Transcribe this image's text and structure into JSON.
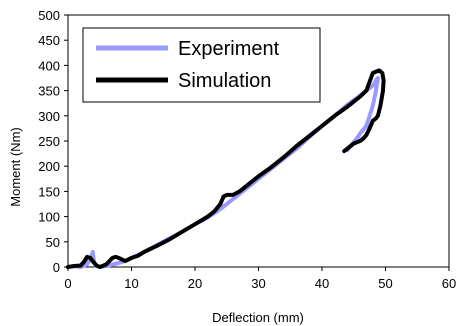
{
  "chart_data": {
    "type": "line",
    "title": "",
    "xlabel": "Deflection (mm)",
    "ylabel": "Moment (Nm)",
    "xlim": [
      0,
      60
    ],
    "ylim": [
      0,
      500
    ],
    "xticks": [
      0,
      10,
      20,
      30,
      40,
      50,
      60
    ],
    "yticks": [
      0,
      50,
      100,
      150,
      200,
      250,
      300,
      350,
      400,
      450,
      500
    ],
    "grid": false,
    "legend_position": "top-left",
    "series": [
      {
        "name": "Experiment",
        "color": "#9999ff",
        "x": [
          0,
          1,
          2,
          3,
          3.6,
          3.9,
          4.1,
          4.4,
          5.0,
          6.0,
          7,
          8,
          9,
          10,
          12,
          15,
          18,
          20,
          22,
          24,
          26,
          28,
          30,
          32,
          34,
          36,
          38,
          40,
          42,
          44,
          46,
          47,
          48,
          48.5,
          48.8,
          48.5,
          48,
          47.5,
          47,
          46,
          45.5,
          45,
          44.5,
          44
        ],
        "y": [
          0,
          2,
          0,
          5,
          20,
          30,
          10,
          2,
          0,
          2,
          5,
          8,
          12,
          18,
          30,
          50,
          70,
          85,
          98,
          115,
          135,
          155,
          175,
          195,
          215,
          235,
          258,
          280,
          300,
          322,
          340,
          350,
          360,
          370,
          375,
          350,
          320,
          300,
          280,
          265,
          255,
          248,
          240,
          232
        ]
      },
      {
        "name": "Simulation",
        "color": "#000000",
        "x": [
          0,
          1,
          2,
          2.5,
          3,
          3.5,
          4,
          4.5,
          5,
          6,
          7,
          7.5,
          8,
          9,
          10,
          11,
          12,
          14,
          16,
          18,
          20,
          22,
          23,
          24,
          24.5,
          25,
          26,
          27,
          28,
          30,
          32,
          34,
          36,
          38,
          40,
          42,
          44,
          46,
          47,
          48,
          49,
          49.5,
          49.7,
          49.6,
          49.2,
          48.8,
          48.5,
          48,
          47.5,
          47,
          46.5,
          46,
          45,
          44,
          43.5
        ],
        "y": [
          0,
          2,
          3,
          10,
          20,
          18,
          10,
          3,
          0,
          5,
          18,
          20,
          18,
          12,
          18,
          22,
          30,
          42,
          55,
          70,
          85,
          100,
          110,
          125,
          140,
          143,
          143,
          150,
          160,
          180,
          198,
          218,
          240,
          260,
          280,
          300,
          318,
          338,
          350,
          385,
          390,
          385,
          370,
          350,
          320,
          300,
          295,
          290,
          275,
          262,
          255,
          250,
          245,
          235,
          230
        ]
      }
    ]
  }
}
